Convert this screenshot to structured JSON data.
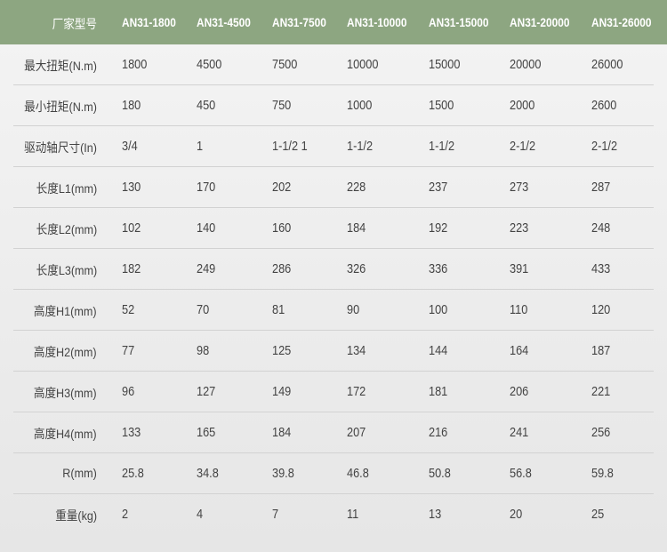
{
  "header": {
    "label": "厂家型号",
    "models": [
      "AN31-1800",
      "AN31-4500",
      "AN31-7500",
      "AN31-10000",
      "AN31-15000",
      "AN31-20000",
      "AN31-26000"
    ]
  },
  "rows": [
    {
      "label": "最大扭矩(N.m)",
      "values": [
        "1800",
        "4500",
        "7500",
        "10000",
        "15000",
        "20000",
        "26000"
      ]
    },
    {
      "label": "最小扭矩(N.m)",
      "values": [
        "180",
        "450",
        "750",
        "1000",
        "1500",
        "2000",
        "2600"
      ]
    },
    {
      "label": "驱动轴尺寸(In)",
      "values": [
        "3/4",
        "1",
        "1-1/2 1",
        "1-1/2",
        "1-1/2",
        "2-1/2",
        "2-1/2"
      ]
    },
    {
      "label": "长度L1(mm)",
      "values": [
        "130",
        "170",
        "202",
        "228",
        "237",
        "273",
        "287"
      ]
    },
    {
      "label": "长度L2(mm)",
      "values": [
        "102",
        "140",
        "160",
        "184",
        "192",
        "223",
        "248"
      ]
    },
    {
      "label": "长度L3(mm)",
      "values": [
        "182",
        "249",
        "286",
        "326",
        "336",
        "391",
        "433"
      ]
    },
    {
      "label": "高度H1(mm)",
      "values": [
        "52",
        "70",
        "81",
        "90",
        "100",
        "110",
        "120"
      ]
    },
    {
      "label": "高度H2(mm)",
      "values": [
        "77",
        "98",
        "125",
        "134",
        "144",
        "164",
        "187"
      ]
    },
    {
      "label": "高度H3(mm)",
      "values": [
        "96",
        "127",
        "149",
        "172",
        "181",
        "206",
        "221"
      ]
    },
    {
      "label": "高度H4(mm)",
      "values": [
        "133",
        "165",
        "184",
        "207",
        "216",
        "241",
        "256"
      ]
    },
    {
      "label": "R(mm)",
      "values": [
        "25.8",
        "34.8",
        "39.8",
        "46.8",
        "50.8",
        "56.8",
        "59.8"
      ]
    },
    {
      "label": "重量(kg)",
      "values": [
        "2",
        "4",
        "7",
        "11",
        "13",
        "20",
        "25"
      ]
    }
  ],
  "colors": {
    "header_bg": "#8da681",
    "header_text": "#ffffff",
    "body_text": "#444444"
  }
}
